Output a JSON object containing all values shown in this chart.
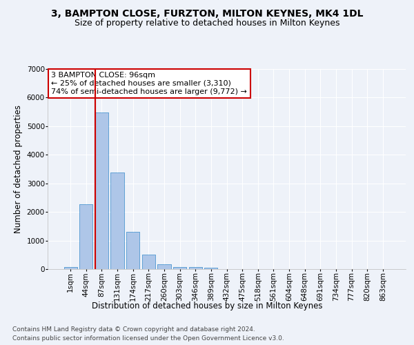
{
  "title": "3, BAMPTON CLOSE, FURZTON, MILTON KEYNES, MK4 1DL",
  "subtitle": "Size of property relative to detached houses in Milton Keynes",
  "xlabel": "Distribution of detached houses by size in Milton Keynes",
  "ylabel": "Number of detached properties",
  "footer_line1": "Contains HM Land Registry data © Crown copyright and database right 2024.",
  "footer_line2": "Contains public sector information licensed under the Open Government Licence v3.0.",
  "categories": [
    "1sqm",
    "44sqm",
    "87sqm",
    "131sqm",
    "174sqm",
    "217sqm",
    "260sqm",
    "303sqm",
    "346sqm",
    "389sqm",
    "432sqm",
    "475sqm",
    "518sqm",
    "561sqm",
    "604sqm",
    "648sqm",
    "691sqm",
    "734sqm",
    "777sqm",
    "820sqm",
    "863sqm"
  ],
  "values": [
    75,
    2280,
    5480,
    3370,
    1310,
    500,
    175,
    80,
    65,
    55,
    0,
    0,
    0,
    0,
    0,
    0,
    0,
    0,
    0,
    0,
    0
  ],
  "bar_color": "#aec6e8",
  "bar_edge_color": "#5a9fd4",
  "background_color": "#eef2f9",
  "grid_color": "#ffffff",
  "annotation_box_color": "#ffffff",
  "annotation_border_color": "#cc0000",
  "vline_color": "#cc0000",
  "vline_x_index": 2,
  "ylim": [
    0,
    7000
  ],
  "yticks": [
    0,
    1000,
    2000,
    3000,
    4000,
    5000,
    6000,
    7000
  ],
  "annotation_title": "3 BAMPTON CLOSE: 96sqm",
  "annotation_line2": "← 25% of detached houses are smaller (3,310)",
  "annotation_line3": "74% of semi-detached houses are larger (9,772) →",
  "title_fontsize": 10,
  "subtitle_fontsize": 9,
  "axis_label_fontsize": 8.5,
  "tick_fontsize": 7.5,
  "annotation_fontsize": 8,
  "footer_fontsize": 6.5
}
